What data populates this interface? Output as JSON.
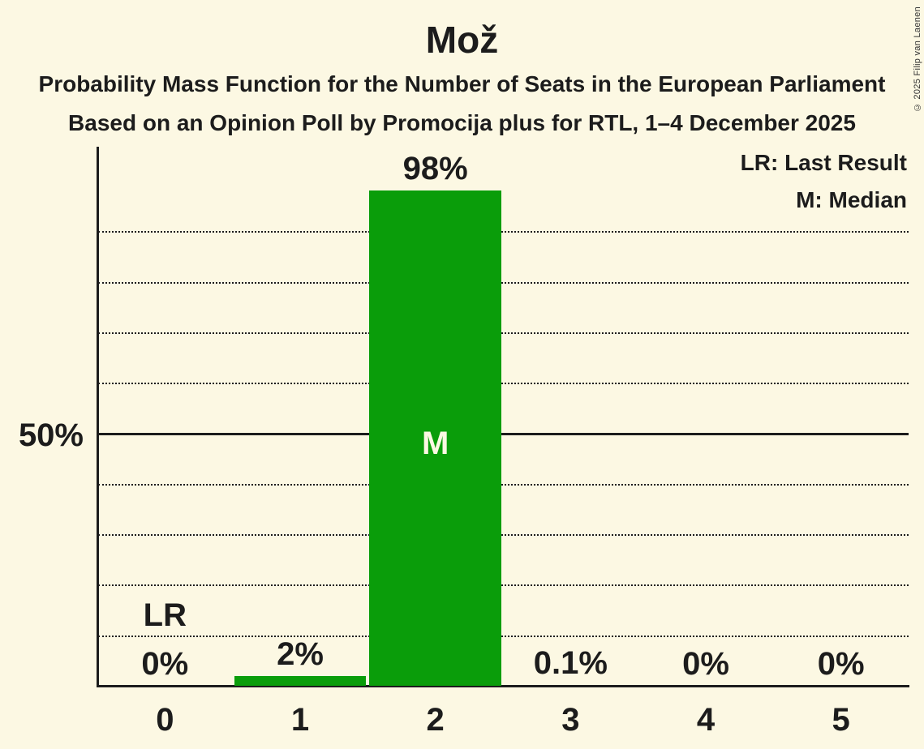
{
  "title": "Mož",
  "subtitle_line1": "Probability Mass Function for the Number of Seats in the European Parliament",
  "subtitle_line2": "Based on an Opinion Poll by Promocija plus for RTL, 1–4 December 2025",
  "copyright": "© 2025 Filip van Laenen",
  "legend": {
    "last_result": "LR: Last Result",
    "median": "M: Median"
  },
  "colors": {
    "background": "#FCF8E3",
    "bar_green": "#0A9D0A",
    "text": "#1C1C1C"
  },
  "chart_data": {
    "type": "bar",
    "title": "Mož",
    "categories": [
      "0",
      "1",
      "2",
      "3",
      "4",
      "5"
    ],
    "values": [
      0,
      2,
      98,
      0.1,
      0,
      0
    ],
    "value_labels": [
      "0%",
      "2%",
      "98%",
      "0.1%",
      "0%",
      "0%"
    ],
    "y_axis_tick_label": "50%",
    "ylim": [
      0,
      100
    ],
    "gridline_interval_percent": 10,
    "solid_gridline_at_percent": 50,
    "grid": "dotted horizontal lines every 10%, solid line at 50%",
    "legend_position": "top-right",
    "median_marker": "M",
    "median_category": "2",
    "last_result_marker": "LR",
    "last_result_category": "0"
  }
}
